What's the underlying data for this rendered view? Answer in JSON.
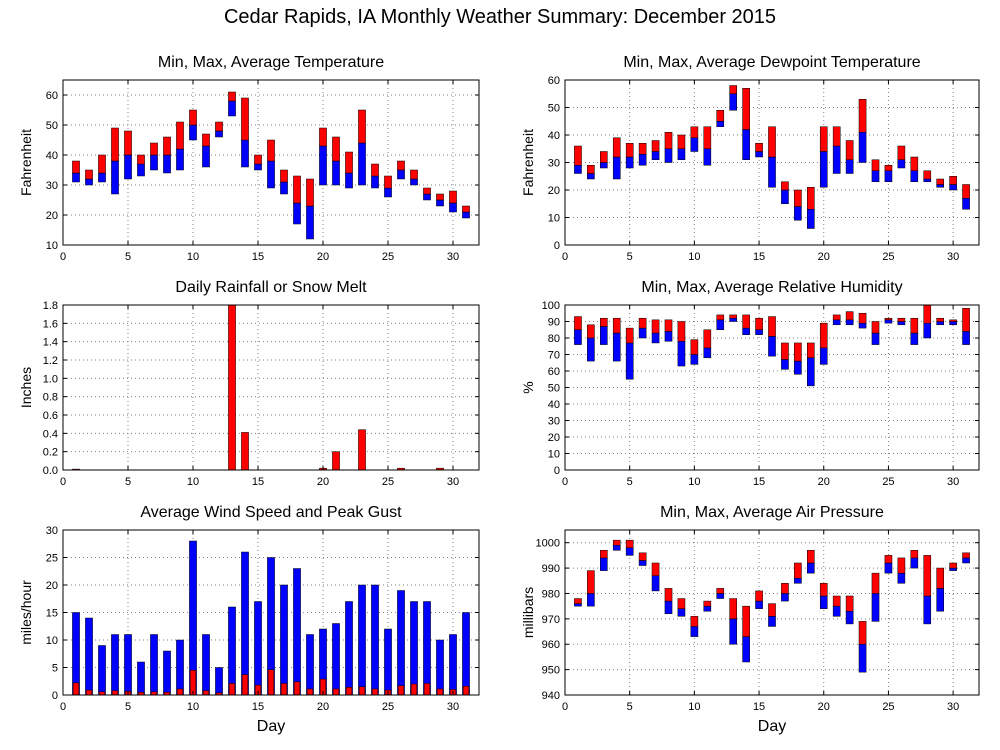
{
  "figure": {
    "title": "Cedar Rapids, IA Monthly Weather Summary: December 2015"
  },
  "colors": {
    "upper": "#ff0000",
    "lower": "#0000ff",
    "grid": "#808080",
    "axis": "#000000"
  },
  "chart_data": [
    {
      "type": "bar",
      "style": "floating min-avg-max",
      "title": "Min, Max, Average Temperature",
      "ylabel": "Fahrenheit",
      "xlabel": "",
      "xlim": [
        0,
        32
      ],
      "xticks": [
        0,
        5,
        10,
        15,
        20,
        25,
        30
      ],
      "ylim": [
        10,
        65
      ],
      "yticks": [
        10,
        20,
        30,
        40,
        50,
        60
      ],
      "grid": true,
      "x": [
        1,
        2,
        3,
        4,
        5,
        6,
        7,
        8,
        9,
        10,
        11,
        12,
        13,
        14,
        15,
        16,
        17,
        18,
        19,
        20,
        21,
        22,
        23,
        24,
        25,
        26,
        27,
        28,
        29,
        30,
        31
      ],
      "min": [
        31,
        30,
        31,
        27,
        32,
        33,
        35,
        34,
        35,
        45,
        36,
        46,
        53,
        36,
        35,
        29,
        27,
        17,
        12,
        30,
        30,
        29,
        30,
        29,
        26,
        32,
        30,
        25,
        23,
        21,
        19
      ],
      "avg": [
        34,
        32,
        34,
        38,
        40,
        37,
        40,
        40,
        42,
        50,
        43,
        48,
        58,
        45,
        37,
        38,
        31,
        24,
        23,
        43,
        38,
        34,
        44,
        33,
        29,
        35,
        32,
        27,
        25,
        24,
        21
      ],
      "max": [
        38,
        35,
        40,
        49,
        48,
        40,
        44,
        46,
        51,
        55,
        47,
        51,
        61,
        59,
        40,
        45,
        35,
        33,
        32,
        49,
        46,
        41,
        55,
        37,
        33,
        38,
        35,
        29,
        27,
        28,
        23
      ]
    },
    {
      "type": "bar",
      "style": "floating min-avg-max",
      "title": "Min, Max, Average Dewpoint Temperature",
      "ylabel": "Fahrenheit",
      "xlabel": "",
      "xlim": [
        0,
        32
      ],
      "xticks": [
        0,
        5,
        10,
        15,
        20,
        25,
        30
      ],
      "ylim": [
        0,
        60
      ],
      "yticks": [
        0,
        10,
        20,
        30,
        40,
        50,
        60
      ],
      "grid": true,
      "x": [
        1,
        2,
        3,
        4,
        5,
        6,
        7,
        8,
        9,
        10,
        11,
        12,
        13,
        14,
        15,
        16,
        17,
        18,
        19,
        20,
        21,
        22,
        23,
        24,
        25,
        26,
        27,
        28,
        29,
        30,
        31
      ],
      "min": [
        26,
        24,
        28,
        24,
        28,
        29,
        31,
        30,
        31,
        34,
        29,
        43,
        49,
        31,
        32,
        21,
        15,
        9,
        6,
        21,
        26,
        26,
        30,
        23,
        23,
        28,
        23,
        23,
        21,
        20,
        13
      ],
      "avg": [
        29,
        26,
        30,
        32,
        32,
        33,
        34,
        35,
        35,
        39,
        35,
        45,
        55,
        42,
        34,
        32,
        20,
        14,
        13,
        34,
        36,
        31,
        41,
        27,
        27,
        31,
        27,
        24,
        22,
        22,
        17
      ],
      "max": [
        36,
        29,
        34,
        39,
        37,
        37,
        38,
        41,
        40,
        43,
        43,
        49,
        58,
        57,
        37,
        43,
        23,
        20,
        21,
        43,
        43,
        38,
        53,
        31,
        29,
        36,
        32,
        27,
        24,
        25,
        22
      ]
    },
    {
      "type": "bar",
      "title": "Daily Rainfall or Snow Melt",
      "ylabel": "Inches",
      "xlabel": "",
      "xlim": [
        0,
        32
      ],
      "xticks": [
        0,
        5,
        10,
        15,
        20,
        25,
        30
      ],
      "ylim": [
        0,
        1.8
      ],
      "yticks": [
        0.0,
        0.2,
        0.4,
        0.6,
        0.8,
        1.0,
        1.2,
        1.4,
        1.6,
        1.8
      ],
      "grid": true,
      "x": [
        1,
        2,
        3,
        4,
        5,
        6,
        7,
        8,
        9,
        10,
        11,
        12,
        13,
        14,
        15,
        16,
        17,
        18,
        19,
        20,
        21,
        22,
        23,
        24,
        25,
        26,
        27,
        28,
        29,
        30,
        31
      ],
      "values": [
        0.01,
        0,
        0,
        0,
        0,
        0,
        0,
        0,
        0,
        0,
        0,
        0,
        1.8,
        0.41,
        0,
        0,
        0,
        0,
        0,
        0.02,
        0.2,
        0,
        0.44,
        0,
        0,
        0.02,
        0,
        0,
        0.02,
        0,
        0
      ]
    },
    {
      "type": "bar",
      "style": "floating min-avg-max",
      "title": "Min, Max, Average Relative Humidity",
      "ylabel": "%",
      "xlabel": "",
      "xlim": [
        0,
        32
      ],
      "xticks": [
        0,
        5,
        10,
        15,
        20,
        25,
        30
      ],
      "ylim": [
        0,
        100
      ],
      "yticks": [
        0,
        10,
        20,
        30,
        40,
        50,
        60,
        70,
        80,
        90,
        100
      ],
      "grid": true,
      "x": [
        1,
        2,
        3,
        4,
        5,
        6,
        7,
        8,
        9,
        10,
        11,
        12,
        13,
        14,
        15,
        16,
        17,
        18,
        19,
        20,
        21,
        22,
        23,
        24,
        25,
        26,
        27,
        28,
        29,
        30,
        31
      ],
      "min": [
        76,
        66,
        76,
        66,
        55,
        80,
        77,
        78,
        63,
        64,
        68,
        85,
        90,
        82,
        82,
        69,
        61,
        58,
        51,
        64,
        88,
        88,
        86,
        76,
        89,
        88,
        76,
        80,
        88,
        88,
        76
      ],
      "avg": [
        85,
        80,
        87,
        83,
        77,
        86,
        83,
        84,
        78,
        70,
        74,
        91,
        92,
        86,
        85,
        81,
        67,
        66,
        68,
        74,
        91,
        91,
        89,
        83,
        91,
        90,
        83,
        89,
        90,
        90,
        84
      ],
      "max": [
        93,
        88,
        92,
        92,
        86,
        92,
        91,
        91,
        90,
        79,
        85,
        94,
        94,
        94,
        92,
        93,
        77,
        77,
        77,
        89,
        94,
        96,
        95,
        90,
        92,
        92,
        92,
        100,
        92,
        91,
        98
      ]
    },
    {
      "type": "bar",
      "title": "Average Wind Speed and Peak Gust",
      "ylabel": "miles/hour",
      "xlabel": "Day",
      "xlim": [
        0,
        32
      ],
      "xticks": [
        0,
        5,
        10,
        15,
        20,
        25,
        30
      ],
      "ylim": [
        0,
        30
      ],
      "yticks": [
        0,
        5,
        10,
        15,
        20,
        25,
        30
      ],
      "grid": true,
      "x": [
        1,
        2,
        3,
        4,
        5,
        6,
        7,
        8,
        9,
        10,
        11,
        12,
        13,
        14,
        15,
        16,
        17,
        18,
        19,
        20,
        21,
        22,
        23,
        24,
        25,
        26,
        27,
        28,
        29,
        30,
        31
      ],
      "series": [
        {
          "name": "Peak Gust",
          "color": "#0000ff",
          "values": [
            15,
            14,
            9,
            11,
            11,
            6,
            11,
            8,
            10,
            28,
            11,
            5,
            16,
            26,
            17,
            25,
            20,
            23,
            11,
            12,
            13,
            17,
            20,
            20,
            12,
            19,
            17,
            17,
            10,
            11,
            15
          ]
        },
        {
          "name": "Average Wind Speed",
          "color": "#ff0000",
          "values": [
            2.2,
            0.9,
            0.6,
            0.8,
            0.7,
            0.5,
            0.6,
            0.5,
            1.1,
            4.5,
            0.8,
            0.4,
            2.1,
            3.7,
            1.8,
            4.6,
            2.1,
            2.4,
            1.1,
            2.9,
            1.1,
            1.4,
            1.5,
            1.1,
            0.9,
            1.7,
            2.0,
            2.1,
            1.1,
            1.0,
            1.6
          ]
        }
      ]
    },
    {
      "type": "bar",
      "style": "floating min-avg-max",
      "title": "Min, Max, Average Air Pressure",
      "ylabel": "millibars",
      "xlabel": "Day",
      "xlim": [
        0,
        32
      ],
      "xticks": [
        0,
        5,
        10,
        15,
        20,
        25,
        30
      ],
      "ylim": [
        940,
        1005
      ],
      "yticks": [
        940,
        950,
        960,
        970,
        980,
        990,
        1000
      ],
      "grid": true,
      "x": [
        1,
        2,
        3,
        4,
        5,
        6,
        7,
        8,
        9,
        10,
        11,
        12,
        13,
        14,
        15,
        16,
        17,
        18,
        19,
        20,
        21,
        22,
        23,
        24,
        25,
        26,
        27,
        28,
        29,
        30,
        31
      ],
      "min": [
        975,
        975,
        989,
        997,
        995,
        991,
        981,
        972,
        971,
        963,
        973,
        978,
        960,
        953,
        974,
        967,
        977,
        984,
        988,
        974,
        971,
        968,
        949,
        969,
        988,
        984,
        990,
        968,
        973,
        989,
        992
      ],
      "avg": [
        976,
        980,
        994,
        999,
        998,
        993,
        987,
        977,
        974,
        967,
        975,
        980,
        970,
        963,
        977,
        971,
        980,
        986,
        992,
        979,
        975,
        973,
        960,
        980,
        992,
        988,
        994,
        979,
        982,
        990,
        994
      ],
      "max": [
        978,
        989,
        997,
        1001,
        1001,
        996,
        992,
        982,
        978,
        971,
        977,
        982,
        978,
        975,
        981,
        976,
        984,
        992,
        997,
        984,
        979,
        979,
        969,
        988,
        995,
        994,
        997,
        995,
        990,
        992,
        996
      ]
    }
  ]
}
